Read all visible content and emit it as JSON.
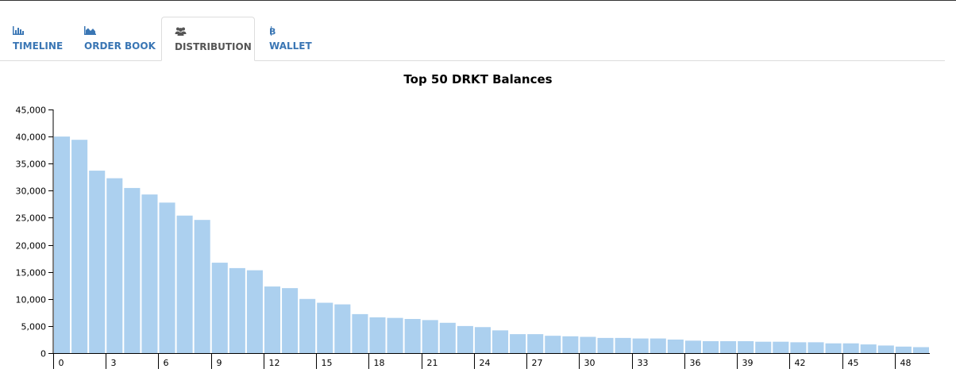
{
  "tabs": [
    {
      "label": "TIMELINE",
      "icon": "bar-chart-icon",
      "active": false
    },
    {
      "label": "ORDER BOOK",
      "icon": "area-chart-icon",
      "active": false
    },
    {
      "label": "DISTRIBUTION",
      "icon": "users-icon",
      "active": true
    },
    {
      "label": "WALLET",
      "icon": "bitcoin-icon",
      "active": false
    }
  ],
  "colors": {
    "bar": "#acd0ef",
    "tab_link": "#3a76b4",
    "tab_active": "#555555",
    "axis": "#000000"
  },
  "chart_data": {
    "type": "bar",
    "title": "Top 50 DRKT Balances",
    "xlabel": "",
    "ylabel": "",
    "ylim": [
      0,
      45000
    ],
    "yticks": [
      0,
      5000,
      10000,
      15000,
      20000,
      25000,
      30000,
      35000,
      40000,
      45000
    ],
    "ytick_labels": [
      "0",
      "5,000",
      "10,000",
      "15,000",
      "20,000",
      "25,000",
      "30,000",
      "35,000",
      "40,000",
      "45,000"
    ],
    "categories": [
      0,
      1,
      2,
      3,
      4,
      5,
      6,
      7,
      8,
      9,
      10,
      11,
      12,
      13,
      14,
      15,
      16,
      17,
      18,
      19,
      20,
      21,
      22,
      23,
      24,
      25,
      26,
      27,
      28,
      29,
      30,
      31,
      32,
      33,
      34,
      35,
      36,
      37,
      38,
      39,
      40,
      41,
      42,
      43,
      44,
      45,
      46,
      47,
      48,
      49
    ],
    "xticks": [
      0,
      3,
      6,
      9,
      12,
      15,
      18,
      21,
      24,
      27,
      30,
      33,
      36,
      39,
      42,
      45,
      48
    ],
    "values": [
      40000,
      39400,
      33700,
      32300,
      30500,
      29300,
      27800,
      25400,
      24600,
      16700,
      15700,
      15300,
      12300,
      12000,
      10000,
      9300,
      9000,
      7200,
      6600,
      6500,
      6300,
      6100,
      5600,
      5000,
      4800,
      4200,
      3500,
      3500,
      3200,
      3100,
      3000,
      2800,
      2800,
      2700,
      2700,
      2500,
      2300,
      2200,
      2200,
      2200,
      2100,
      2100,
      2000,
      2000,
      1800,
      1800,
      1600,
      1400,
      1200,
      1100
    ],
    "grid": false,
    "legend": "none"
  }
}
